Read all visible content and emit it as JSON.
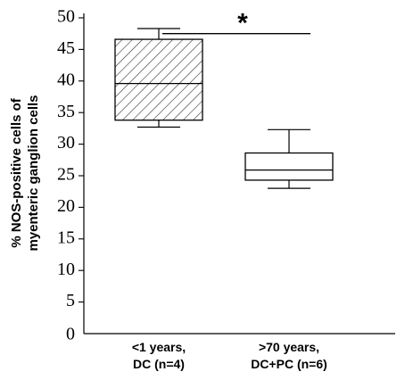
{
  "chart_data": {
    "type": "box",
    "title": "",
    "ylabel_lines": [
      "% NOS-positive cells of",
      "myenteric ganglion cells"
    ],
    "xlabel": "",
    "ylim": [
      0,
      50
    ],
    "yticks": [
      0,
      5,
      10,
      15,
      20,
      25,
      30,
      35,
      40,
      45,
      50
    ],
    "grid": false,
    "legend": "none",
    "categories": [
      {
        "label_lines": [
          "<1 years,",
          "DC (n=4)"
        ],
        "min": 32.7,
        "q1": 33.8,
        "median": 39.6,
        "q3": 46.6,
        "max": 48.3,
        "fill": "hatched"
      },
      {
        "label_lines": [
          ">70 years,",
          "DC+PC (n=6)"
        ],
        "min": 23.0,
        "q1": 24.3,
        "median": 25.9,
        "q3": 28.6,
        "max": 32.3,
        "fill": "none"
      }
    ],
    "annotation": {
      "text": "*",
      "from_category": 0,
      "to_category": 1,
      "y": 47.5
    }
  }
}
